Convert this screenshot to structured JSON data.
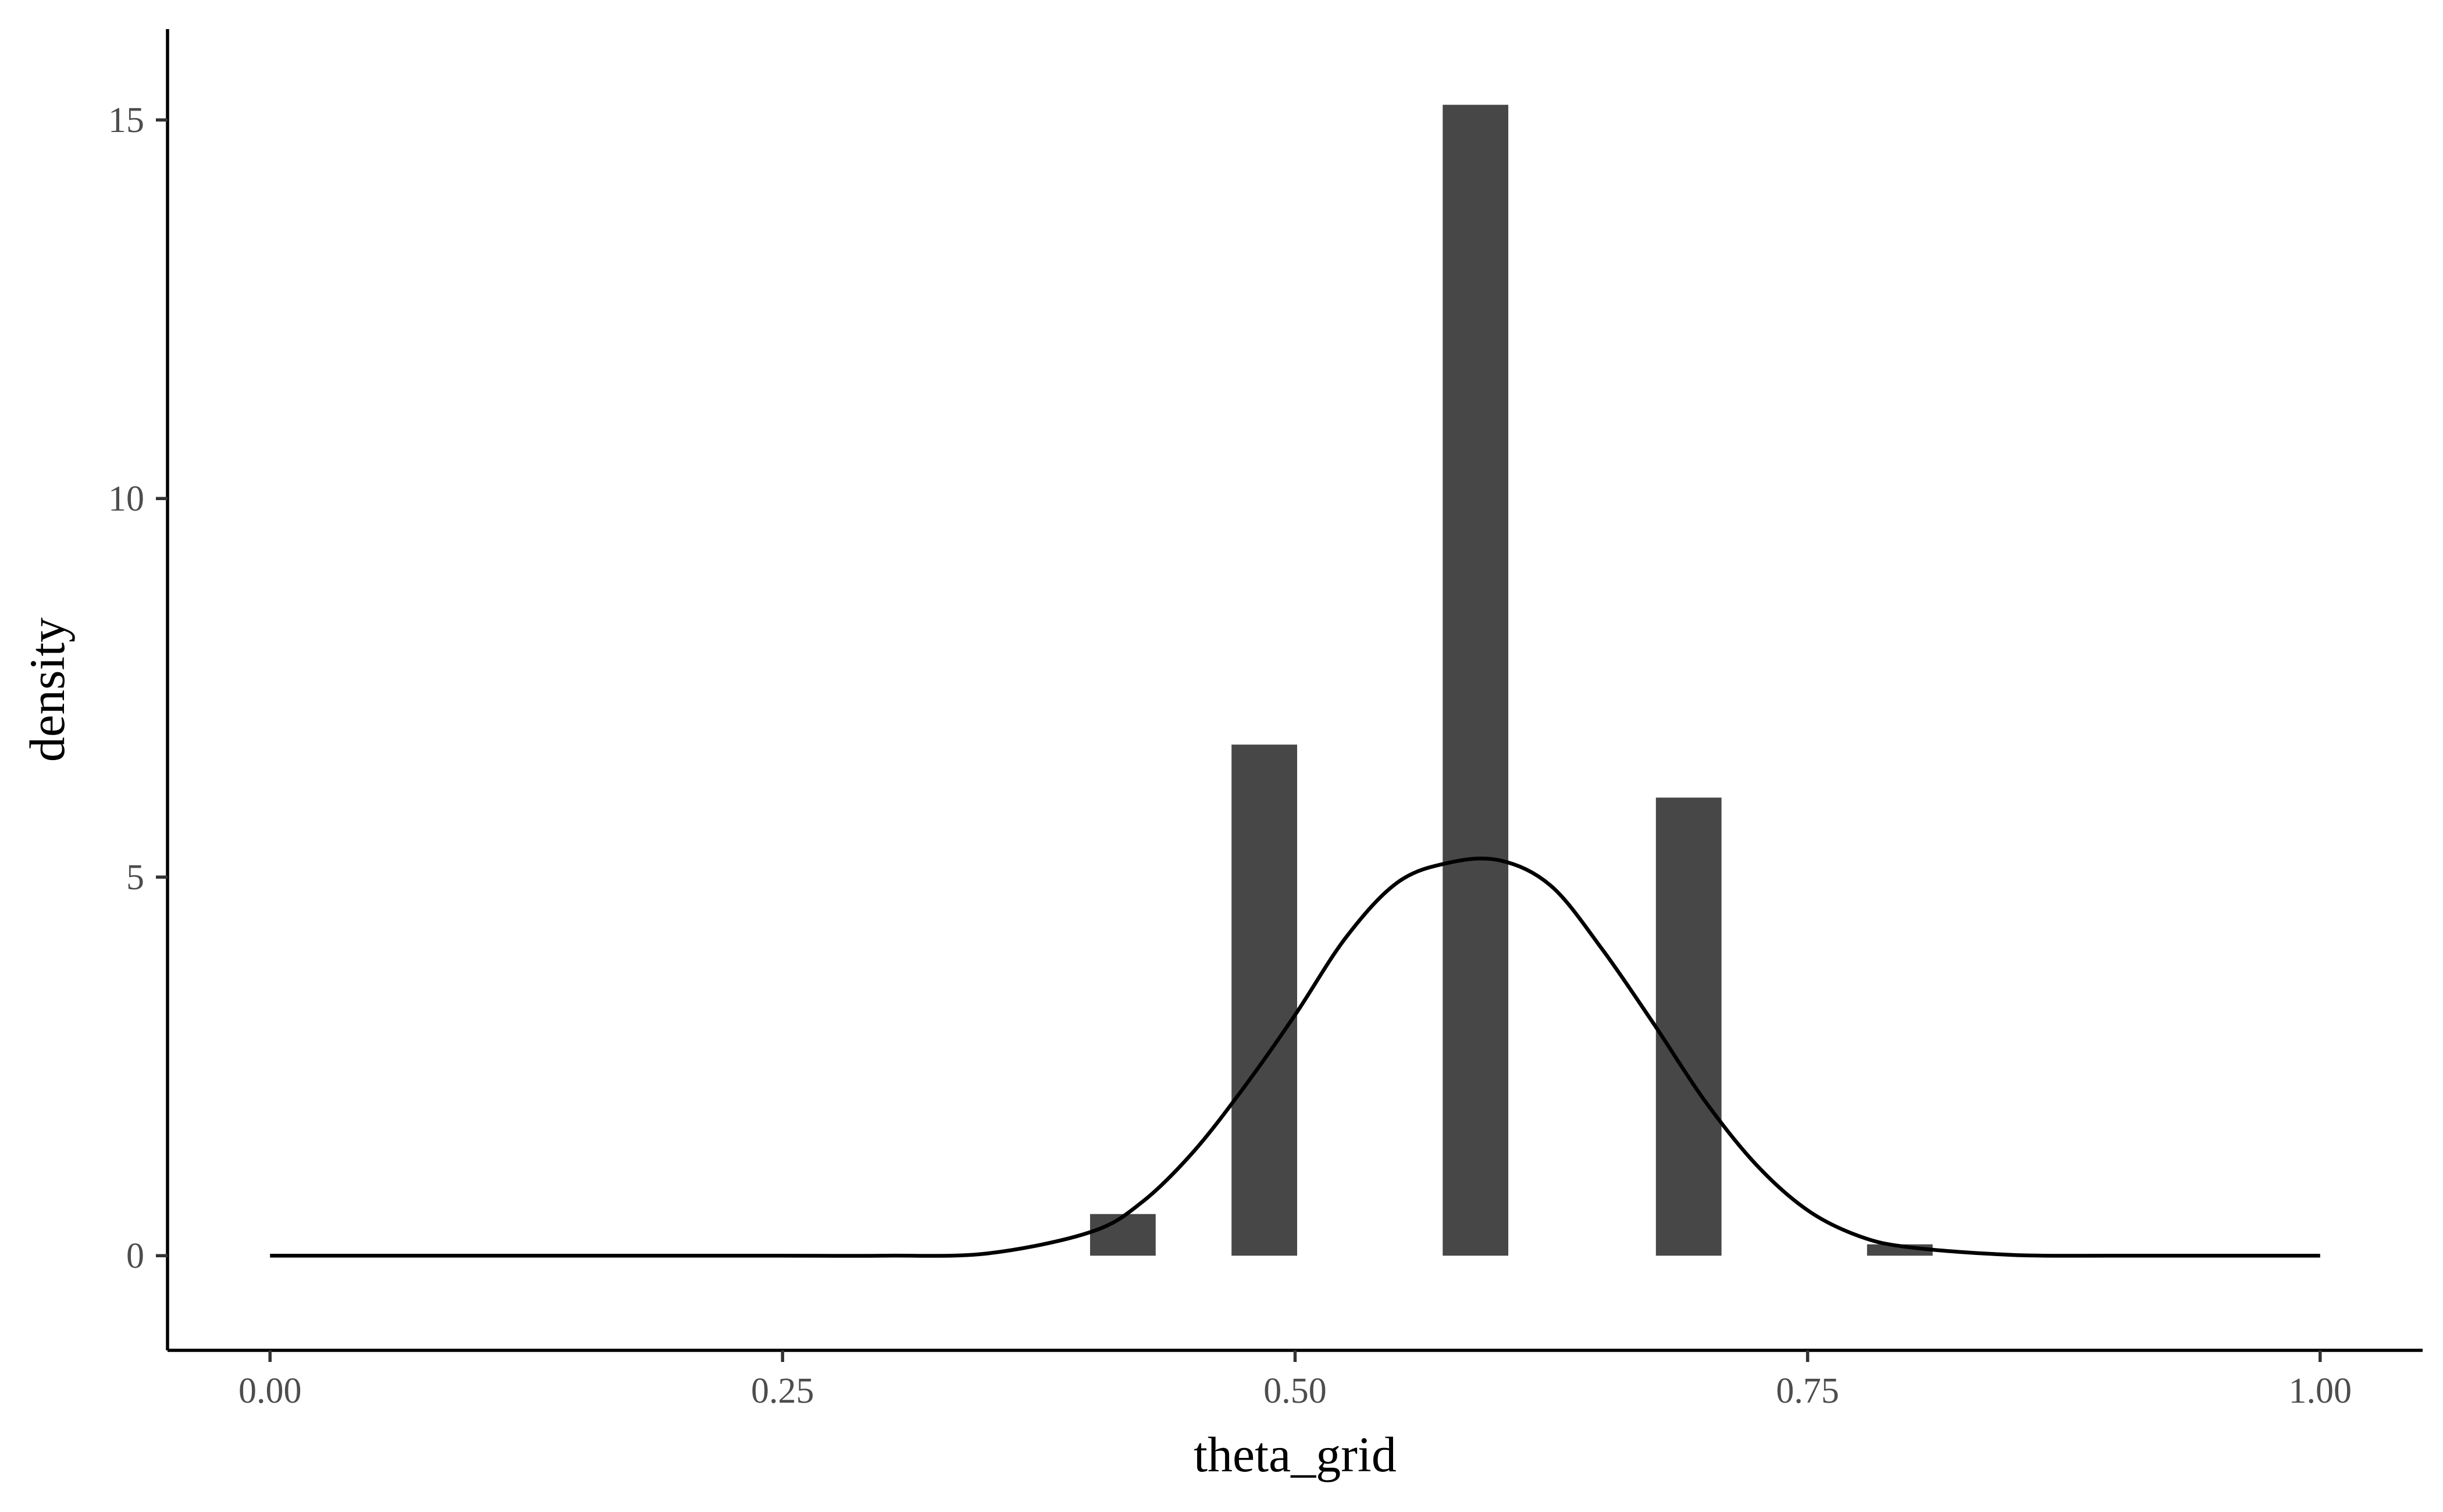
{
  "chart_data": {
    "type": "bar",
    "title": "",
    "xlabel": "theta_grid",
    "ylabel": "density",
    "xlim": [
      -0.05,
      1.05
    ],
    "ylim": [
      -1.25,
      16.2
    ],
    "grid": false,
    "legend": "none",
    "x_ticks": [
      {
        "value": 0.0,
        "label": "0.00"
      },
      {
        "value": 0.25,
        "label": "0.25"
      },
      {
        "value": 0.5,
        "label": "0.50"
      },
      {
        "value": 0.75,
        "label": "0.75"
      },
      {
        "value": 1.0,
        "label": "1.00"
      }
    ],
    "y_ticks": [
      {
        "value": 0,
        "label": "0"
      },
      {
        "value": 5,
        "label": "5"
      },
      {
        "value": 10,
        "label": "10"
      },
      {
        "value": 15,
        "label": "15"
      }
    ],
    "bars": [
      {
        "x0": 0.4,
        "x1": 0.432,
        "value": 0.55
      },
      {
        "x0": 0.469,
        "x1": 0.501,
        "value": 6.75
      },
      {
        "x0": 0.572,
        "x1": 0.604,
        "value": 15.2
      },
      {
        "x0": 0.676,
        "x1": 0.708,
        "value": 6.05
      },
      {
        "x0": 0.779,
        "x1": 0.811,
        "value": 0.15
      }
    ],
    "density_curve": {
      "x": [
        0.0,
        0.05,
        0.1,
        0.15,
        0.2,
        0.25,
        0.3,
        0.35,
        0.4,
        0.425,
        0.45,
        0.475,
        0.5,
        0.525,
        0.55,
        0.575,
        0.6,
        0.625,
        0.65,
        0.675,
        0.7,
        0.725,
        0.75,
        0.775,
        0.8,
        0.85,
        0.9,
        0.95,
        1.0
      ],
      "y": [
        0.0,
        0.0,
        0.0,
        0.0,
        0.0,
        0.0,
        0.0,
        0.03,
        0.31,
        0.7,
        1.36,
        2.22,
        3.18,
        4.21,
        4.93,
        5.19,
        5.22,
        4.88,
        4.04,
        3.06,
        2.04,
        1.2,
        0.6,
        0.26,
        0.11,
        0.01,
        0.0,
        0.0,
        0.0
      ]
    },
    "colors": {
      "bar": "#474747",
      "line": "#000000",
      "axis": "#000000",
      "tick_text": "#4d4d4d"
    }
  }
}
